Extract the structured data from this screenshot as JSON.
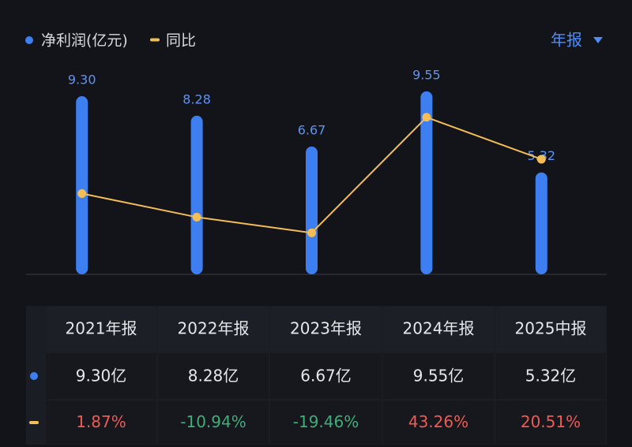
{
  "chart_data": {
    "type": "bar",
    "legend": [
      "净利润(亿元)",
      "同比"
    ],
    "period": "年报",
    "categories": [
      "2021年报",
      "2022年报",
      "2023年报",
      "2024年报",
      "2025中报"
    ],
    "series": [
      {
        "name": "净利润(亿元)",
        "type": "bar",
        "color": "#3d7ef0",
        "values": [
          9.3,
          8.28,
          6.67,
          9.55,
          5.32
        ],
        "value_labels": [
          "9.30",
          "8.28",
          "6.67",
          "9.55",
          "5.32"
        ]
      },
      {
        "name": "同比",
        "type": "line",
        "axis": "y2",
        "color": "#f4bd55",
        "values": [
          1.87,
          -10.94,
          -19.46,
          43.26,
          20.51
        ]
      }
    ],
    "ylim": [
      0,
      10
    ],
    "y2lim": [
      -42,
      62
    ]
  },
  "table": {
    "rows": [
      [
        "9.30亿",
        "8.28亿",
        "6.67亿",
        "9.55亿",
        "5.32亿"
      ],
      [
        "1.87%",
        "-10.94%",
        "-19.46%",
        "43.26%",
        "20.51%"
      ]
    ]
  }
}
